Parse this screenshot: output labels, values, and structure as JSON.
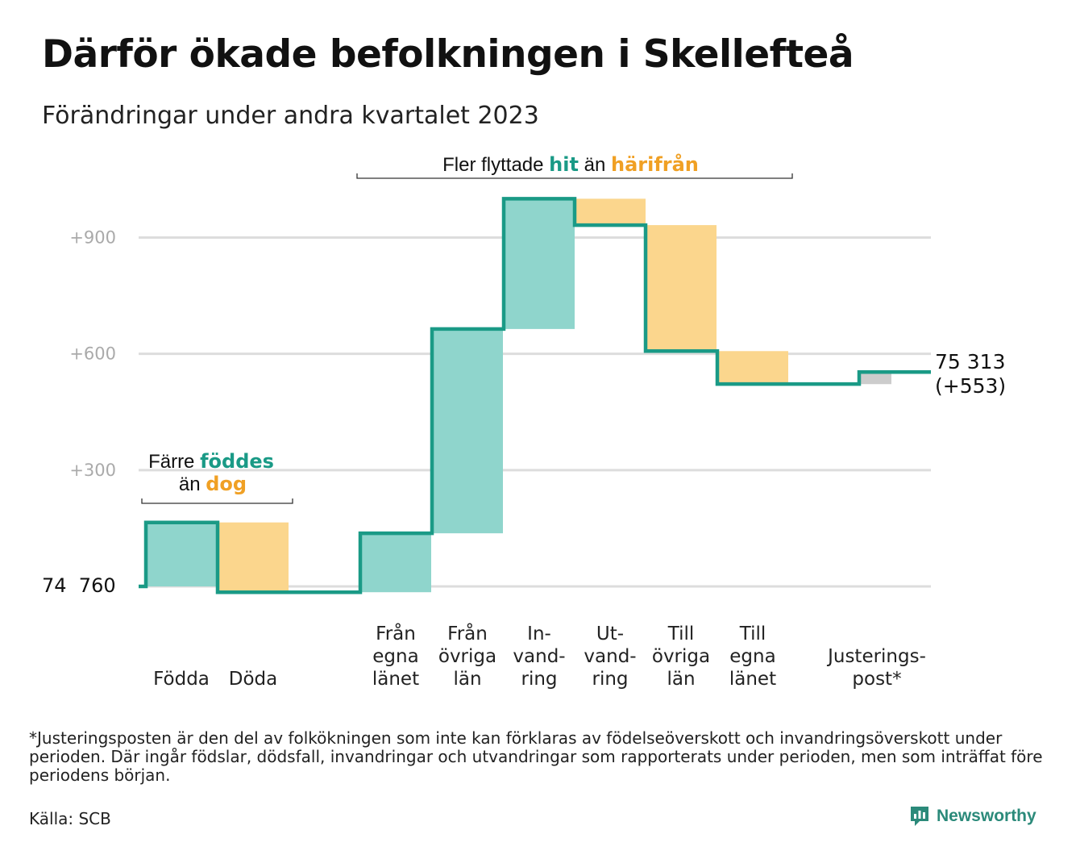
{
  "header": {
    "title": "Därför ökade befolkningen i Skellefteå",
    "subtitle": "Förändringar under andra kvartalet 2023"
  },
  "colors": {
    "inflow": "#8fd5cc",
    "outflow": "#fbd68d",
    "adjustment": "#cccccc",
    "line": "#1a9a86",
    "teal_text": "#1a9a86",
    "orange_text": "#f0a024"
  },
  "chart_data": {
    "type": "waterfall",
    "baseline": 74760,
    "baseline_label": "74  760",
    "y_relative_ticks": [
      300,
      600,
      900
    ],
    "y_tick_labels": [
      "+300",
      "+600",
      "+900"
    ],
    "ylim": [
      -30,
      1060
    ],
    "grid": true,
    "steps": [
      {
        "label_lines": [
          "Födda"
        ],
        "delta": 165,
        "kind": "inflow"
      },
      {
        "label_lines": [
          "Döda"
        ],
        "delta": -180,
        "kind": "outflow"
      },
      {
        "label_lines": [
          "Från",
          "egna",
          "länet"
        ],
        "delta": 152,
        "kind": "inflow"
      },
      {
        "label_lines": [
          "Från",
          "övriga",
          "län"
        ],
        "delta": 527,
        "kind": "inflow"
      },
      {
        "label_lines": [
          "In-",
          "vand-",
          "ring"
        ],
        "delta": 336,
        "kind": "inflow"
      },
      {
        "label_lines": [
          "Ut-",
          "vand-",
          "ring"
        ],
        "delta": -68,
        "kind": "outflow"
      },
      {
        "label_lines": [
          "Till",
          "övriga",
          "län"
        ],
        "delta": -325,
        "kind": "outflow"
      },
      {
        "label_lines": [
          "Till",
          "egna",
          "länet"
        ],
        "delta": -85,
        "kind": "outflow"
      },
      {
        "label_lines": [
          "Justerings-",
          "post*"
        ],
        "delta": 31,
        "kind": "adjustment"
      }
    ],
    "end_total": 75313,
    "end_label_line1": "75 313",
    "end_label_line2": "(+553)"
  },
  "annotations": {
    "births": {
      "part1": "Färre ",
      "part2": "föddes",
      "part3": "än ",
      "part4": "dog"
    },
    "migration": {
      "part1": "Fler flyttade ",
      "part2": "hit",
      "part3": " än ",
      "part4": "härifrån"
    }
  },
  "footer": {
    "footnote": "*Justeringsposten är den del av folkökningen som inte kan förklaras av födelseöverskott och invandringsöverskott under perioden. Där ingår födslar, dödsfall, invandringar och utvandringar som rapporterats under perioden, men som inträffat före periodens början.",
    "source": "Källa: SCB",
    "brand": "Newsworthy"
  }
}
